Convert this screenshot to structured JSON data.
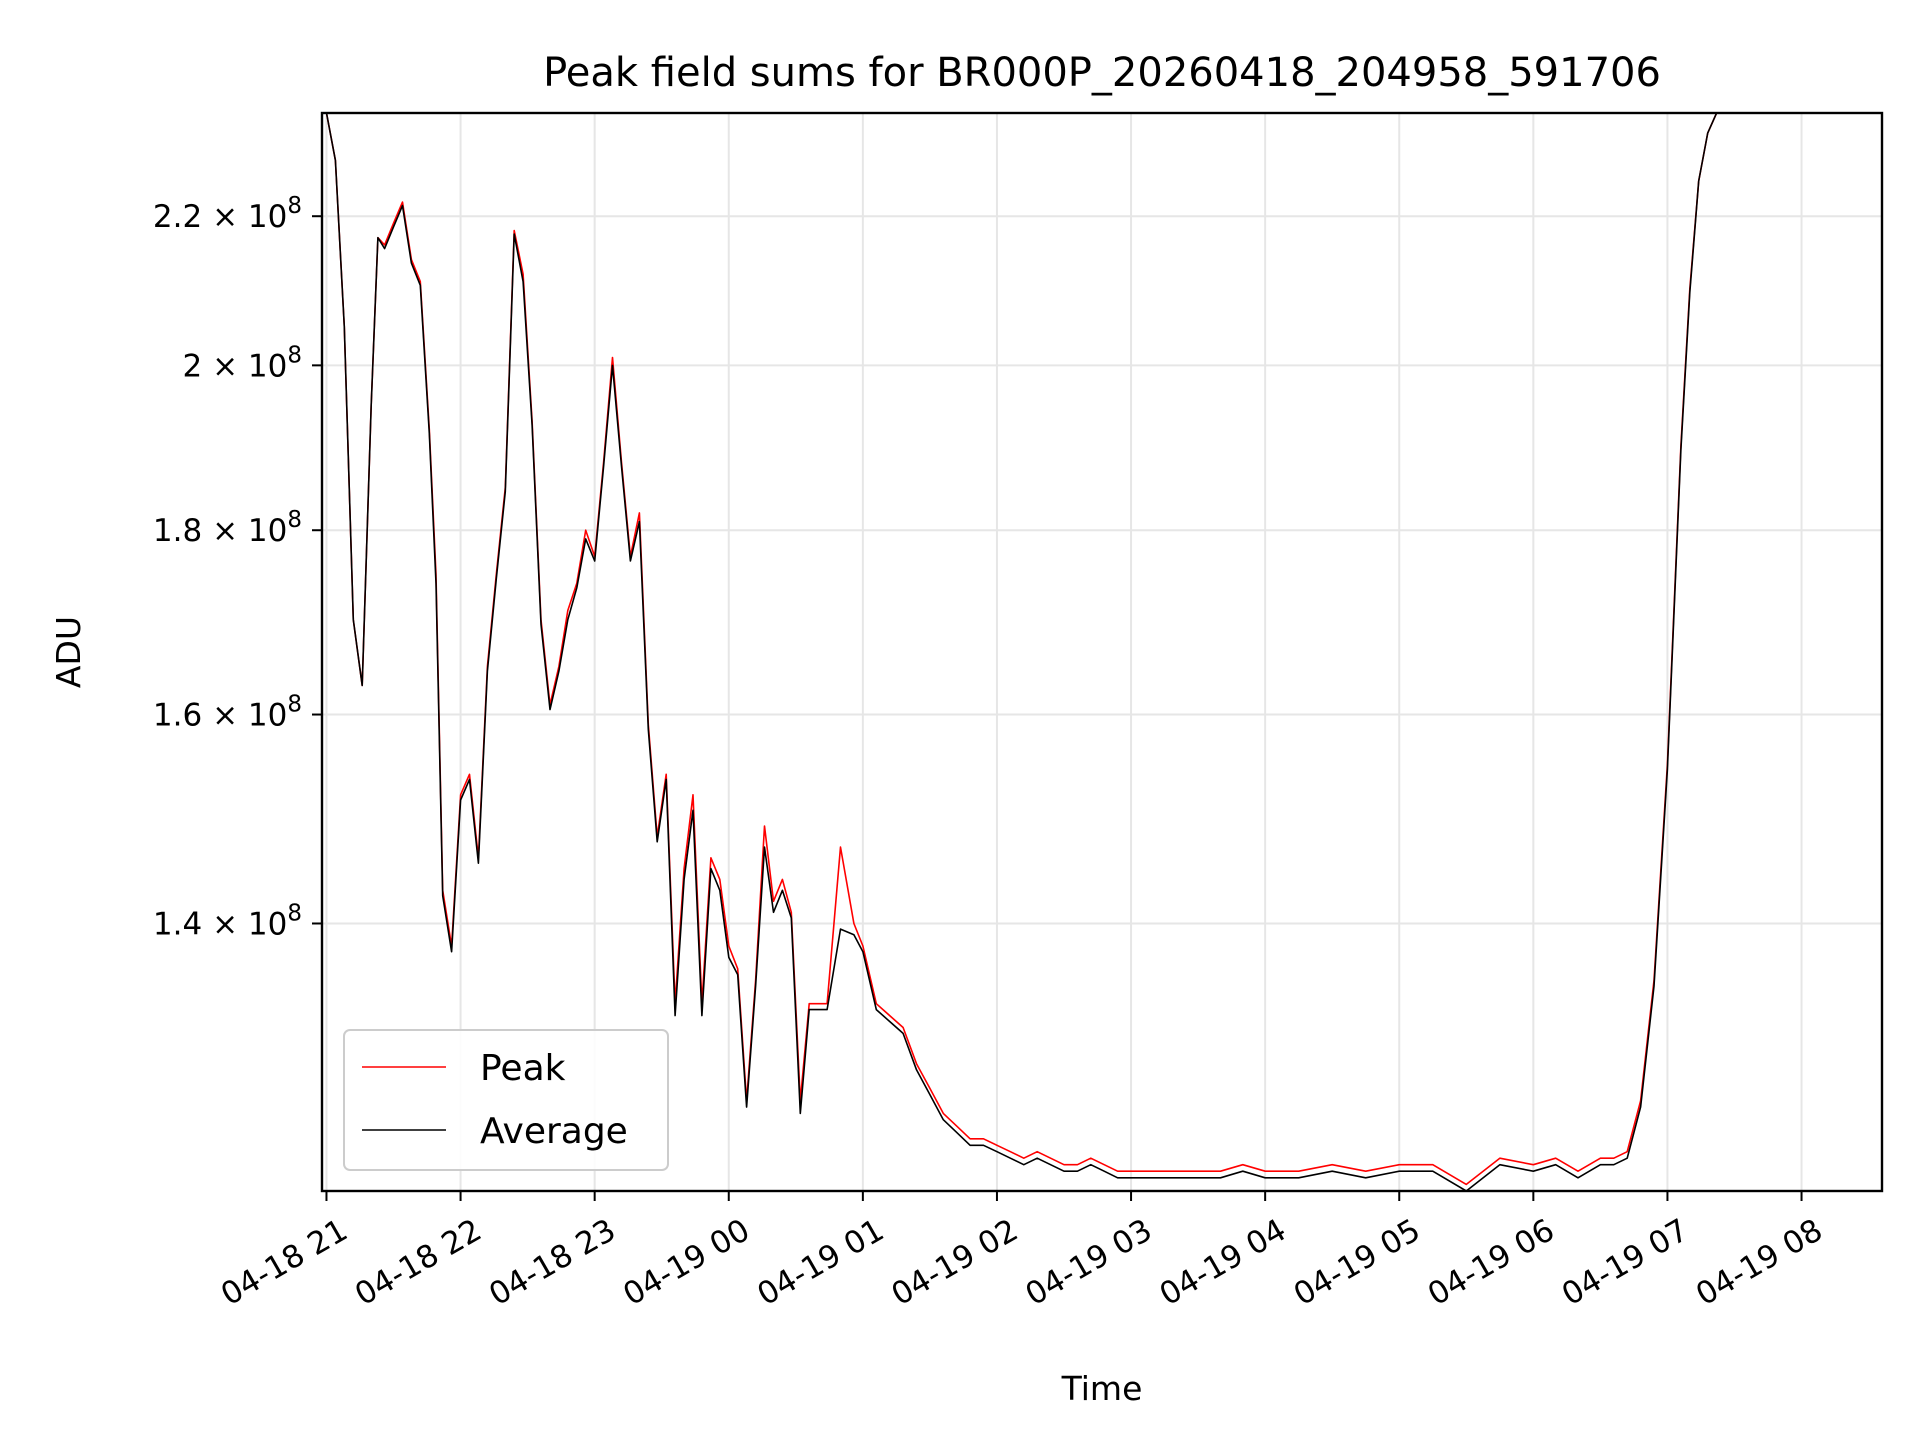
{
  "chart_data": {
    "type": "line",
    "title": "Peak field sums for BR000P_20260418_204958_591706",
    "xlabel": "Time",
    "ylabel": "ADU",
    "y_scale": "log",
    "grid": true,
    "legend_position": "lower-left",
    "x_ticks": [
      "04-18 21",
      "04-18 22",
      "04-18 23",
      "04-19 00",
      "04-19 01",
      "04-19 02",
      "04-19 03",
      "04-19 04",
      "04-19 05",
      "04-19 06",
      "04-19 07",
      "04-19 08"
    ],
    "y_ticks": [
      {
        "value": 140000000,
        "mantissa": "1.4",
        "exponent": "8"
      },
      {
        "value": 160000000,
        "mantissa": "1.6",
        "exponent": "8"
      },
      {
        "value": 180000000,
        "mantissa": "1.8",
        "exponent": "8"
      },
      {
        "value": 200000000,
        "mantissa": "2",
        "exponent": "8"
      },
      {
        "value": 220000000,
        "mantissa": "2.2",
        "exponent": "8"
      }
    ],
    "x_range": [
      "2026-04-18 20:58",
      "2026-04-19 08:36"
    ],
    "y_range": [
      118000000,
      235000000
    ],
    "series": [
      {
        "name": "Peak",
        "color": "#ff0000",
        "x": [
          "2026-04-18 20:58",
          "2026-04-18 21:00",
          "2026-04-18 21:04",
          "2026-04-18 21:08",
          "2026-04-18 21:12",
          "2026-04-18 21:16",
          "2026-04-18 21:20",
          "2026-04-18 21:23",
          "2026-04-18 21:26",
          "2026-04-18 21:30",
          "2026-04-18 21:34",
          "2026-04-18 21:38",
          "2026-04-18 21:42",
          "2026-04-18 21:46",
          "2026-04-18 21:49",
          "2026-04-18 21:52",
          "2026-04-18 21:56",
          "2026-04-18 22:00",
          "2026-04-18 22:04",
          "2026-04-18 22:08",
          "2026-04-18 22:12",
          "2026-04-18 22:16",
          "2026-04-18 22:20",
          "2026-04-18 22:24",
          "2026-04-18 22:28",
          "2026-04-18 22:32",
          "2026-04-18 22:36",
          "2026-04-18 22:40",
          "2026-04-18 22:44",
          "2026-04-18 22:48",
          "2026-04-18 22:52",
          "2026-04-18 22:56",
          "2026-04-18 23:00",
          "2026-04-18 23:04",
          "2026-04-18 23:08",
          "2026-04-18 23:12",
          "2026-04-18 23:16",
          "2026-04-18 23:20",
          "2026-04-18 23:24",
          "2026-04-18 23:28",
          "2026-04-18 23:32",
          "2026-04-18 23:36",
          "2026-04-18 23:40",
          "2026-04-18 23:44",
          "2026-04-18 23:48",
          "2026-04-18 23:52",
          "2026-04-18 23:56",
          "2026-04-19 00:00",
          "2026-04-19 00:04",
          "2026-04-19 00:08",
          "2026-04-19 00:12",
          "2026-04-19 00:16",
          "2026-04-19 00:20",
          "2026-04-19 00:24",
          "2026-04-19 00:28",
          "2026-04-19 00:32",
          "2026-04-19 00:36",
          "2026-04-19 00:40",
          "2026-04-19 00:44",
          "2026-04-19 00:50",
          "2026-04-19 00:56",
          "2026-04-19 01:00",
          "2026-04-19 01:06",
          "2026-04-19 01:12",
          "2026-04-19 01:18",
          "2026-04-19 01:24",
          "2026-04-19 01:30",
          "2026-04-19 01:36",
          "2026-04-19 01:42",
          "2026-04-19 01:48",
          "2026-04-19 01:54",
          "2026-04-19 02:00",
          "2026-04-19 02:06",
          "2026-04-19 02:12",
          "2026-04-19 02:18",
          "2026-04-19 02:24",
          "2026-04-19 02:30",
          "2026-04-19 02:36",
          "2026-04-19 02:42",
          "2026-04-19 02:48",
          "2026-04-19 02:54",
          "2026-04-19 03:00",
          "2026-04-19 03:10",
          "2026-04-19 03:20",
          "2026-04-19 03:30",
          "2026-04-19 03:40",
          "2026-04-19 03:50",
          "2026-04-19 04:00",
          "2026-04-19 04:15",
          "2026-04-19 04:30",
          "2026-04-19 04:45",
          "2026-04-19 05:00",
          "2026-04-19 05:15",
          "2026-04-19 05:30",
          "2026-04-19 05:45",
          "2026-04-19 06:00",
          "2026-04-19 06:10",
          "2026-04-19 06:20",
          "2026-04-19 06:30",
          "2026-04-19 06:36",
          "2026-04-19 06:42",
          "2026-04-19 06:48",
          "2026-04-19 06:54",
          "2026-04-19 07:00",
          "2026-04-19 07:06",
          "2026-04-19 07:10",
          "2026-04-19 07:14",
          "2026-04-19 07:18",
          "2026-04-19 07:22",
          "2026-04-19 07:26",
          "2026-04-19 07:30",
          "2026-04-19 07:34",
          "2026-04-19 07:38",
          "2026-04-19 07:42",
          "2026-04-19 07:44",
          "2026-04-19 07:46",
          "2026-04-19 07:48"
        ],
        "y": [
          235000000,
          235000000,
          228000000,
          205000000,
          170000000,
          163000000,
          195000000,
          217000000,
          216000000,
          219000000,
          222000000,
          214000000,
          211000000,
          192000000,
          175000000,
          143000000,
          138000000,
          152000000,
          154000000,
          146000000,
          165000000,
          175000000,
          185000000,
          218000000,
          212000000,
          193000000,
          170000000,
          161000000,
          165000000,
          171000000,
          174000000,
          180000000,
          177000000,
          188000000,
          201000000,
          188000000,
          177000000,
          182000000,
          159000000,
          148000000,
          154000000,
          133000000,
          145000000,
          152000000,
          133000000,
          146000000,
          144000000,
          138000000,
          136000000,
          125000000,
          135000000,
          149000000,
          142000000,
          144000000,
          141000000,
          125000000,
          133000000,
          133000000,
          133000000,
          147000000,
          140000000,
          138000000,
          133000000,
          132000000,
          131000000,
          128000000,
          126000000,
          124000000,
          123000000,
          122000000,
          122000000,
          121500000,
          121000000,
          120500000,
          121000000,
          120500000,
          120000000,
          120000000,
          120500000,
          120000000,
          119500000,
          119500000,
          119500000,
          119500000,
          119500000,
          119500000,
          120000000,
          119500000,
          119500000,
          120000000,
          119500000,
          120000000,
          120000000,
          118500000,
          120500000,
          120000000,
          120500000,
          119500000,
          120500000,
          120500000,
          121000000,
          125000000,
          135000000,
          155000000,
          190000000,
          210000000,
          225000000,
          232000000,
          235000000,
          235000000,
          235000000,
          235000000,
          235000000,
          235000000,
          235000000,
          235000000,
          235000000
        ]
      },
      {
        "name": "Average",
        "color": "#000000",
        "x": [
          "2026-04-18 20:58",
          "2026-04-18 21:00",
          "2026-04-18 21:04",
          "2026-04-18 21:08",
          "2026-04-18 21:12",
          "2026-04-18 21:16",
          "2026-04-18 21:20",
          "2026-04-18 21:23",
          "2026-04-18 21:26",
          "2026-04-18 21:30",
          "2026-04-18 21:34",
          "2026-04-18 21:38",
          "2026-04-18 21:42",
          "2026-04-18 21:46",
          "2026-04-18 21:49",
          "2026-04-18 21:52",
          "2026-04-18 21:56",
          "2026-04-18 22:00",
          "2026-04-18 22:04",
          "2026-04-18 22:08",
          "2026-04-18 22:12",
          "2026-04-18 22:16",
          "2026-04-18 22:20",
          "2026-04-18 22:24",
          "2026-04-18 22:28",
          "2026-04-18 22:32",
          "2026-04-18 22:36",
          "2026-04-18 22:40",
          "2026-04-18 22:44",
          "2026-04-18 22:48",
          "2026-04-18 22:52",
          "2026-04-18 22:56",
          "2026-04-18 23:00",
          "2026-04-18 23:04",
          "2026-04-18 23:08",
          "2026-04-18 23:12",
          "2026-04-18 23:16",
          "2026-04-18 23:20",
          "2026-04-18 23:24",
          "2026-04-18 23:28",
          "2026-04-18 23:32",
          "2026-04-18 23:36",
          "2026-04-18 23:40",
          "2026-04-18 23:44",
          "2026-04-18 23:48",
          "2026-04-18 23:52",
          "2026-04-18 23:56",
          "2026-04-19 00:00",
          "2026-04-19 00:04",
          "2026-04-19 00:08",
          "2026-04-19 00:12",
          "2026-04-19 00:16",
          "2026-04-19 00:20",
          "2026-04-19 00:24",
          "2026-04-19 00:28",
          "2026-04-19 00:32",
          "2026-04-19 00:36",
          "2026-04-19 00:40",
          "2026-04-19 00:44",
          "2026-04-19 00:50",
          "2026-04-19 00:56",
          "2026-04-19 01:00",
          "2026-04-19 01:06",
          "2026-04-19 01:12",
          "2026-04-19 01:18",
          "2026-04-19 01:24",
          "2026-04-19 01:30",
          "2026-04-19 01:36",
          "2026-04-19 01:42",
          "2026-04-19 01:48",
          "2026-04-19 01:54",
          "2026-04-19 02:00",
          "2026-04-19 02:06",
          "2026-04-19 02:12",
          "2026-04-19 02:18",
          "2026-04-19 02:24",
          "2026-04-19 02:30",
          "2026-04-19 02:36",
          "2026-04-19 02:42",
          "2026-04-19 02:48",
          "2026-04-19 02:54",
          "2026-04-19 03:00",
          "2026-04-19 03:10",
          "2026-04-19 03:20",
          "2026-04-19 03:30",
          "2026-04-19 03:40",
          "2026-04-19 03:50",
          "2026-04-19 04:00",
          "2026-04-19 04:15",
          "2026-04-19 04:30",
          "2026-04-19 04:45",
          "2026-04-19 05:00",
          "2026-04-19 05:15",
          "2026-04-19 05:30",
          "2026-04-19 05:45",
          "2026-04-19 06:00",
          "2026-04-19 06:10",
          "2026-04-19 06:20",
          "2026-04-19 06:30",
          "2026-04-19 06:36",
          "2026-04-19 06:42",
          "2026-04-19 06:48",
          "2026-04-19 06:54",
          "2026-04-19 07:00",
          "2026-04-19 07:06",
          "2026-04-19 07:10",
          "2026-04-19 07:14",
          "2026-04-19 07:18",
          "2026-04-19 07:22",
          "2026-04-19 07:26",
          "2026-04-19 07:30",
          "2026-04-19 07:34",
          "2026-04-19 07:38",
          "2026-04-19 07:42",
          "2026-04-19 07:44",
          "2026-04-19 07:46",
          "2026-04-19 07:48"
        ],
        "y": [
          235000000,
          235000000,
          228000000,
          205000000,
          170000000,
          163000000,
          195000000,
          217000000,
          215500000,
          218500000,
          221500000,
          213500000,
          210500000,
          191500000,
          174000000,
          142500000,
          137500000,
          151500000,
          153500000,
          145500000,
          164500000,
          174500000,
          184500000,
          217500000,
          211000000,
          192500000,
          169500000,
          160500000,
          164500000,
          170000000,
          173500000,
          179000000,
          176500000,
          187500000,
          200000000,
          187500000,
          176500000,
          181000000,
          158500000,
          147500000,
          153500000,
          132000000,
          144000000,
          150500000,
          132000000,
          145000000,
          143000000,
          137000000,
          135500000,
          124500000,
          134500000,
          147000000,
          141000000,
          143000000,
          140500000,
          124000000,
          132500000,
          132500000,
          132500000,
          139500000,
          139000000,
          137500000,
          132500000,
          131500000,
          130500000,
          127500000,
          125500000,
          123500000,
          122500000,
          121500000,
          121500000,
          121000000,
          120500000,
          120000000,
          120500000,
          120000000,
          119500000,
          119500000,
          120000000,
          119500000,
          119000000,
          119000000,
          119000000,
          119000000,
          119000000,
          119000000,
          119500000,
          119000000,
          119000000,
          119500000,
          119000000,
          119500000,
          119500000,
          118000000,
          120000000,
          119500000,
          120000000,
          119000000,
          120000000,
          120000000,
          120500000,
          124500000,
          134500000,
          154500000,
          189500000,
          209500000,
          225000000,
          232000000,
          235000000,
          235000000,
          235000000,
          235000000,
          235000000,
          235000000,
          235000000,
          235000000,
          235000000
        ]
      }
    ]
  }
}
